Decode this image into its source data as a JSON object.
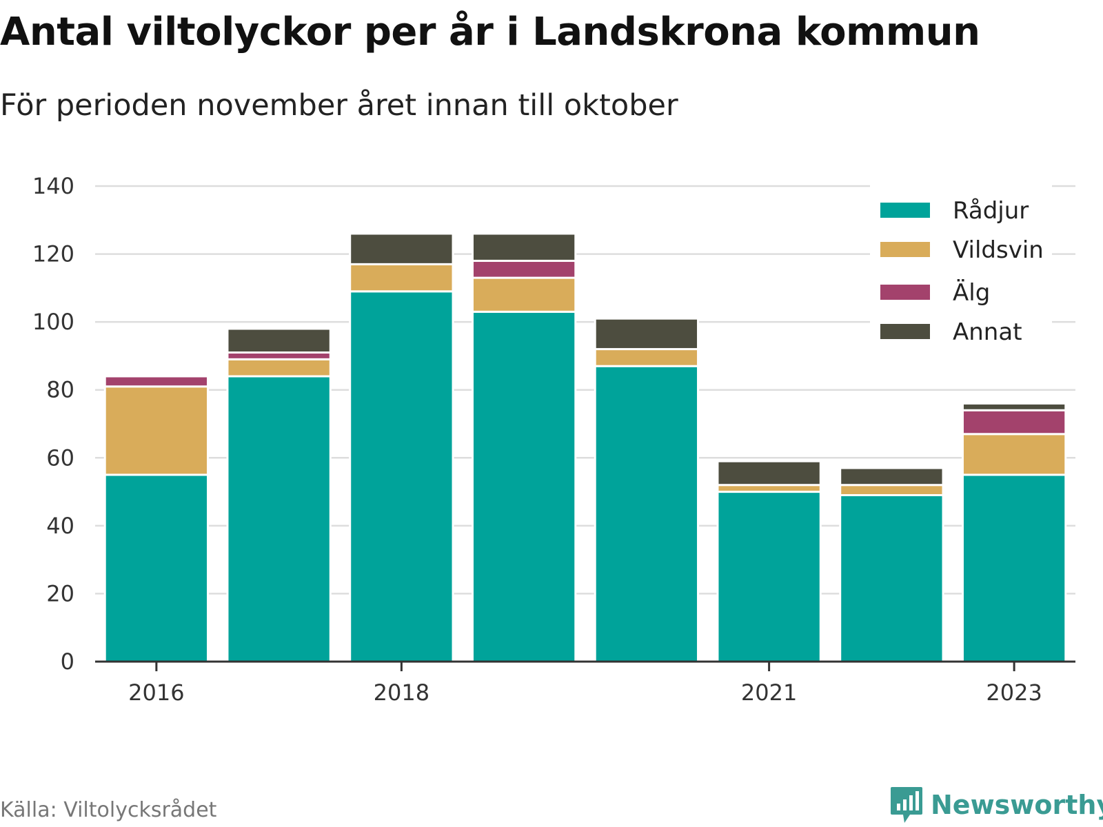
{
  "header": {
    "title": "Antal viltolyckor per år i Landskrona kommun",
    "subtitle": "För perioden november året innan till oktober"
  },
  "footer": {
    "source": "Källa: Viltolycksrådet",
    "brand": "Newsworthy"
  },
  "chart_data": {
    "type": "bar",
    "stacked": true,
    "categories": [
      "2016",
      "2017",
      "2018",
      "2019",
      "2020",
      "2021",
      "2022",
      "2023"
    ],
    "x_tick_labels": [
      "2016",
      "",
      "2018",
      "",
      "",
      "2021",
      "",
      "2023"
    ],
    "ylim": [
      0,
      140
    ],
    "y_ticks": [
      0,
      20,
      40,
      60,
      80,
      100,
      120,
      140
    ],
    "grid": true,
    "legend_position": "top-right",
    "series": [
      {
        "name": "Rådjur",
        "color": "#00a39a",
        "values": [
          55,
          84,
          109,
          103,
          87,
          50,
          49,
          55
        ]
      },
      {
        "name": "Vildsvin",
        "color": "#d9ac5a",
        "values": [
          26,
          5,
          8,
          10,
          5,
          2,
          3,
          12
        ]
      },
      {
        "name": "Älg",
        "color": "#a3426c",
        "values": [
          3,
          2,
          0,
          5,
          0,
          0,
          0,
          7
        ]
      },
      {
        "name": "Annat",
        "color": "#4d4d3f",
        "values": [
          0,
          7,
          9,
          8,
          9,
          7,
          5,
          2
        ]
      }
    ]
  }
}
